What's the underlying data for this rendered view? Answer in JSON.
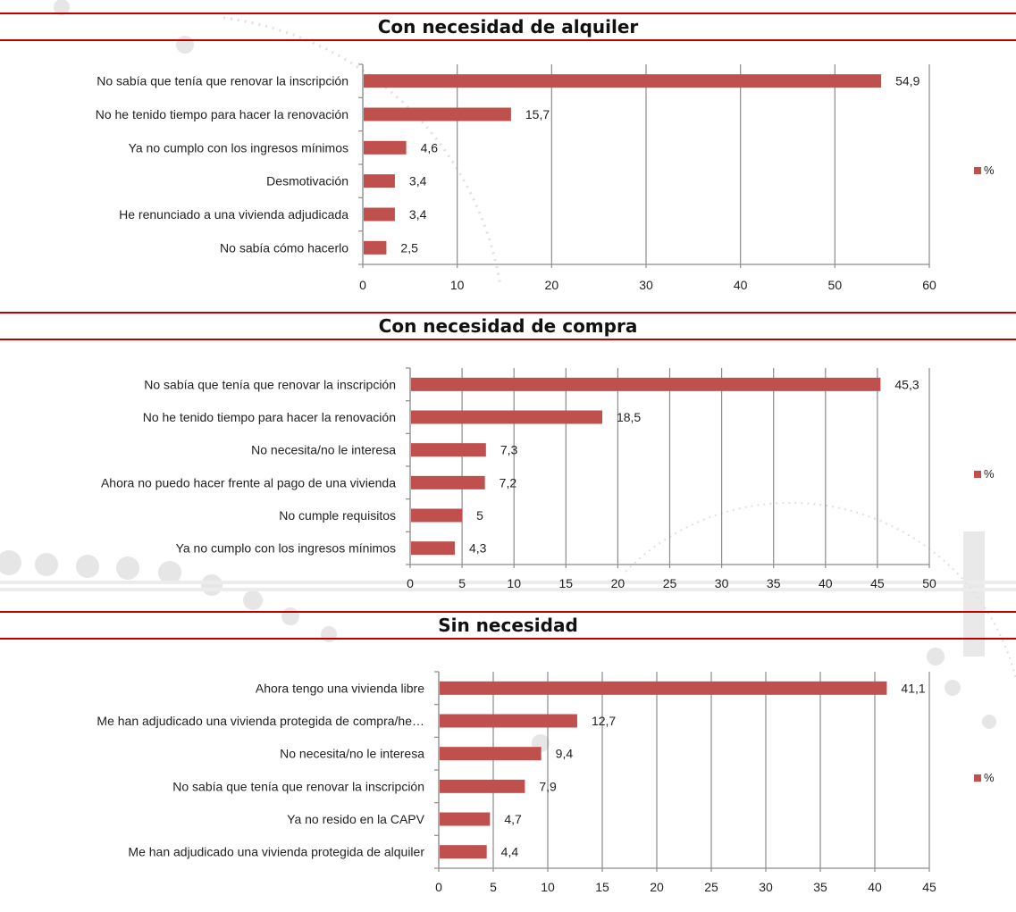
{
  "chart_data": [
    {
      "type": "bar",
      "orientation": "horizontal",
      "title": "Con necesidad de alquiler",
      "categories": [
        "No sabía que tenía que renovar la inscripción",
        "No he tenido tiempo para hacer la renovación",
        "Ya no cumplo con los ingresos mínimos",
        "Desmotivación",
        "He renunciado a una vivienda adjudicada",
        "No sabía cómo hacerlo"
      ],
      "series": [
        {
          "name": "%",
          "values": [
            54.9,
            15.7,
            4.6,
            3.4,
            3.4,
            2.5
          ]
        }
      ],
      "value_labels": [
        "54,9",
        "15,7",
        "4,6",
        "3,4",
        "3,4",
        "2,5"
      ],
      "xlim": [
        0,
        60
      ],
      "xticks": [
        0,
        10,
        20,
        30,
        40,
        50,
        60
      ],
      "grid": true,
      "legend": "right",
      "bar_color": "#c0504d"
    },
    {
      "type": "bar",
      "orientation": "horizontal",
      "title": "Con necesidad de compra",
      "categories": [
        "No sabía que tenía que renovar la inscripción",
        "No he tenido tiempo para hacer la renovación",
        "No necesita/no le interesa",
        "Ahora no puedo hacer frente al pago de una vivienda",
        "No cumple requisitos",
        "Ya no cumplo con los ingresos mínimos"
      ],
      "series": [
        {
          "name": "%",
          "values": [
            45.3,
            18.5,
            7.3,
            7.2,
            5,
            4.3
          ]
        }
      ],
      "value_labels": [
        "45,3",
        "18,5",
        "7,3",
        "7,2",
        "5",
        "4,3"
      ],
      "xlim": [
        0,
        50
      ],
      "xticks": [
        0,
        5,
        10,
        15,
        20,
        25,
        30,
        35,
        40,
        45,
        50
      ],
      "grid": true,
      "legend": "right",
      "bar_color": "#c0504d"
    },
    {
      "type": "bar",
      "orientation": "horizontal",
      "title": "Sin necesidad",
      "categories": [
        "Ahora tengo una vivienda libre",
        "Me han adjudicado una vivienda protegida de compra/he…",
        "No necesita/no le interesa",
        "No sabía que tenía que renovar la inscripción",
        "Ya no resido en la CAPV",
        "Me han adjudicado una vivienda protegida de alquiler"
      ],
      "series": [
        {
          "name": "%",
          "values": [
            41.1,
            12.7,
            9.4,
            7.9,
            4.7,
            4.4
          ]
        }
      ],
      "value_labels": [
        "41,1",
        "12,7",
        "9,4",
        "7,9",
        "4,7",
        "4,4"
      ],
      "xlim": [
        0,
        45
      ],
      "xticks": [
        0,
        5,
        10,
        15,
        20,
        25,
        30,
        35,
        40,
        45
      ],
      "grid": true,
      "legend": "right",
      "bar_color": "#c0504d"
    }
  ]
}
